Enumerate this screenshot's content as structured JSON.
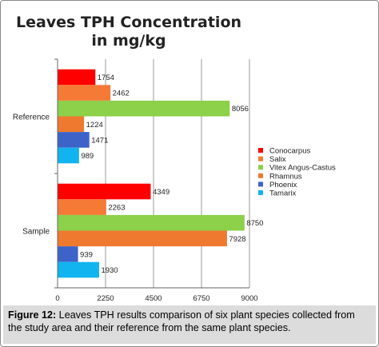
{
  "chart_data": {
    "type": "bar",
    "orientation": "horizontal",
    "title_lines": [
      "Leaves TPH Concentration",
      "in mg/kg"
    ],
    "categories": [
      "Reference",
      "Sample"
    ],
    "series": [
      {
        "name": "Conocarpus",
        "color": "#ff0000",
        "values": [
          1754,
          4349
        ]
      },
      {
        "name": "Salix",
        "color": "#f47a35",
        "values": [
          2462,
          2263
        ]
      },
      {
        "name": "Vitex Angus-Castus",
        "color": "#8dd04a",
        "values": [
          8056,
          8750
        ]
      },
      {
        "name": "Rhamnus",
        "color": "#ef7a2f",
        "values": [
          1224,
          7928
        ]
      },
      {
        "name": "Phoenix",
        "color": "#3d63c8",
        "values": [
          1471,
          939
        ]
      },
      {
        "name": "Tamarix",
        "color": "#11b4ef",
        "values": [
          989,
          1930
        ]
      }
    ],
    "xlim": [
      0,
      9000
    ],
    "xticks": [
      "0",
      "2250",
      "4500",
      "6750",
      "9000"
    ],
    "xtick_values": [
      0,
      2250,
      4500,
      6750,
      9000
    ],
    "grid": true,
    "legend_position": "right"
  },
  "caption": {
    "label": "Figure 12:",
    "text": " Leaves TPH results comparison of six plant species collected from the study area and their reference from the same plant species."
  }
}
